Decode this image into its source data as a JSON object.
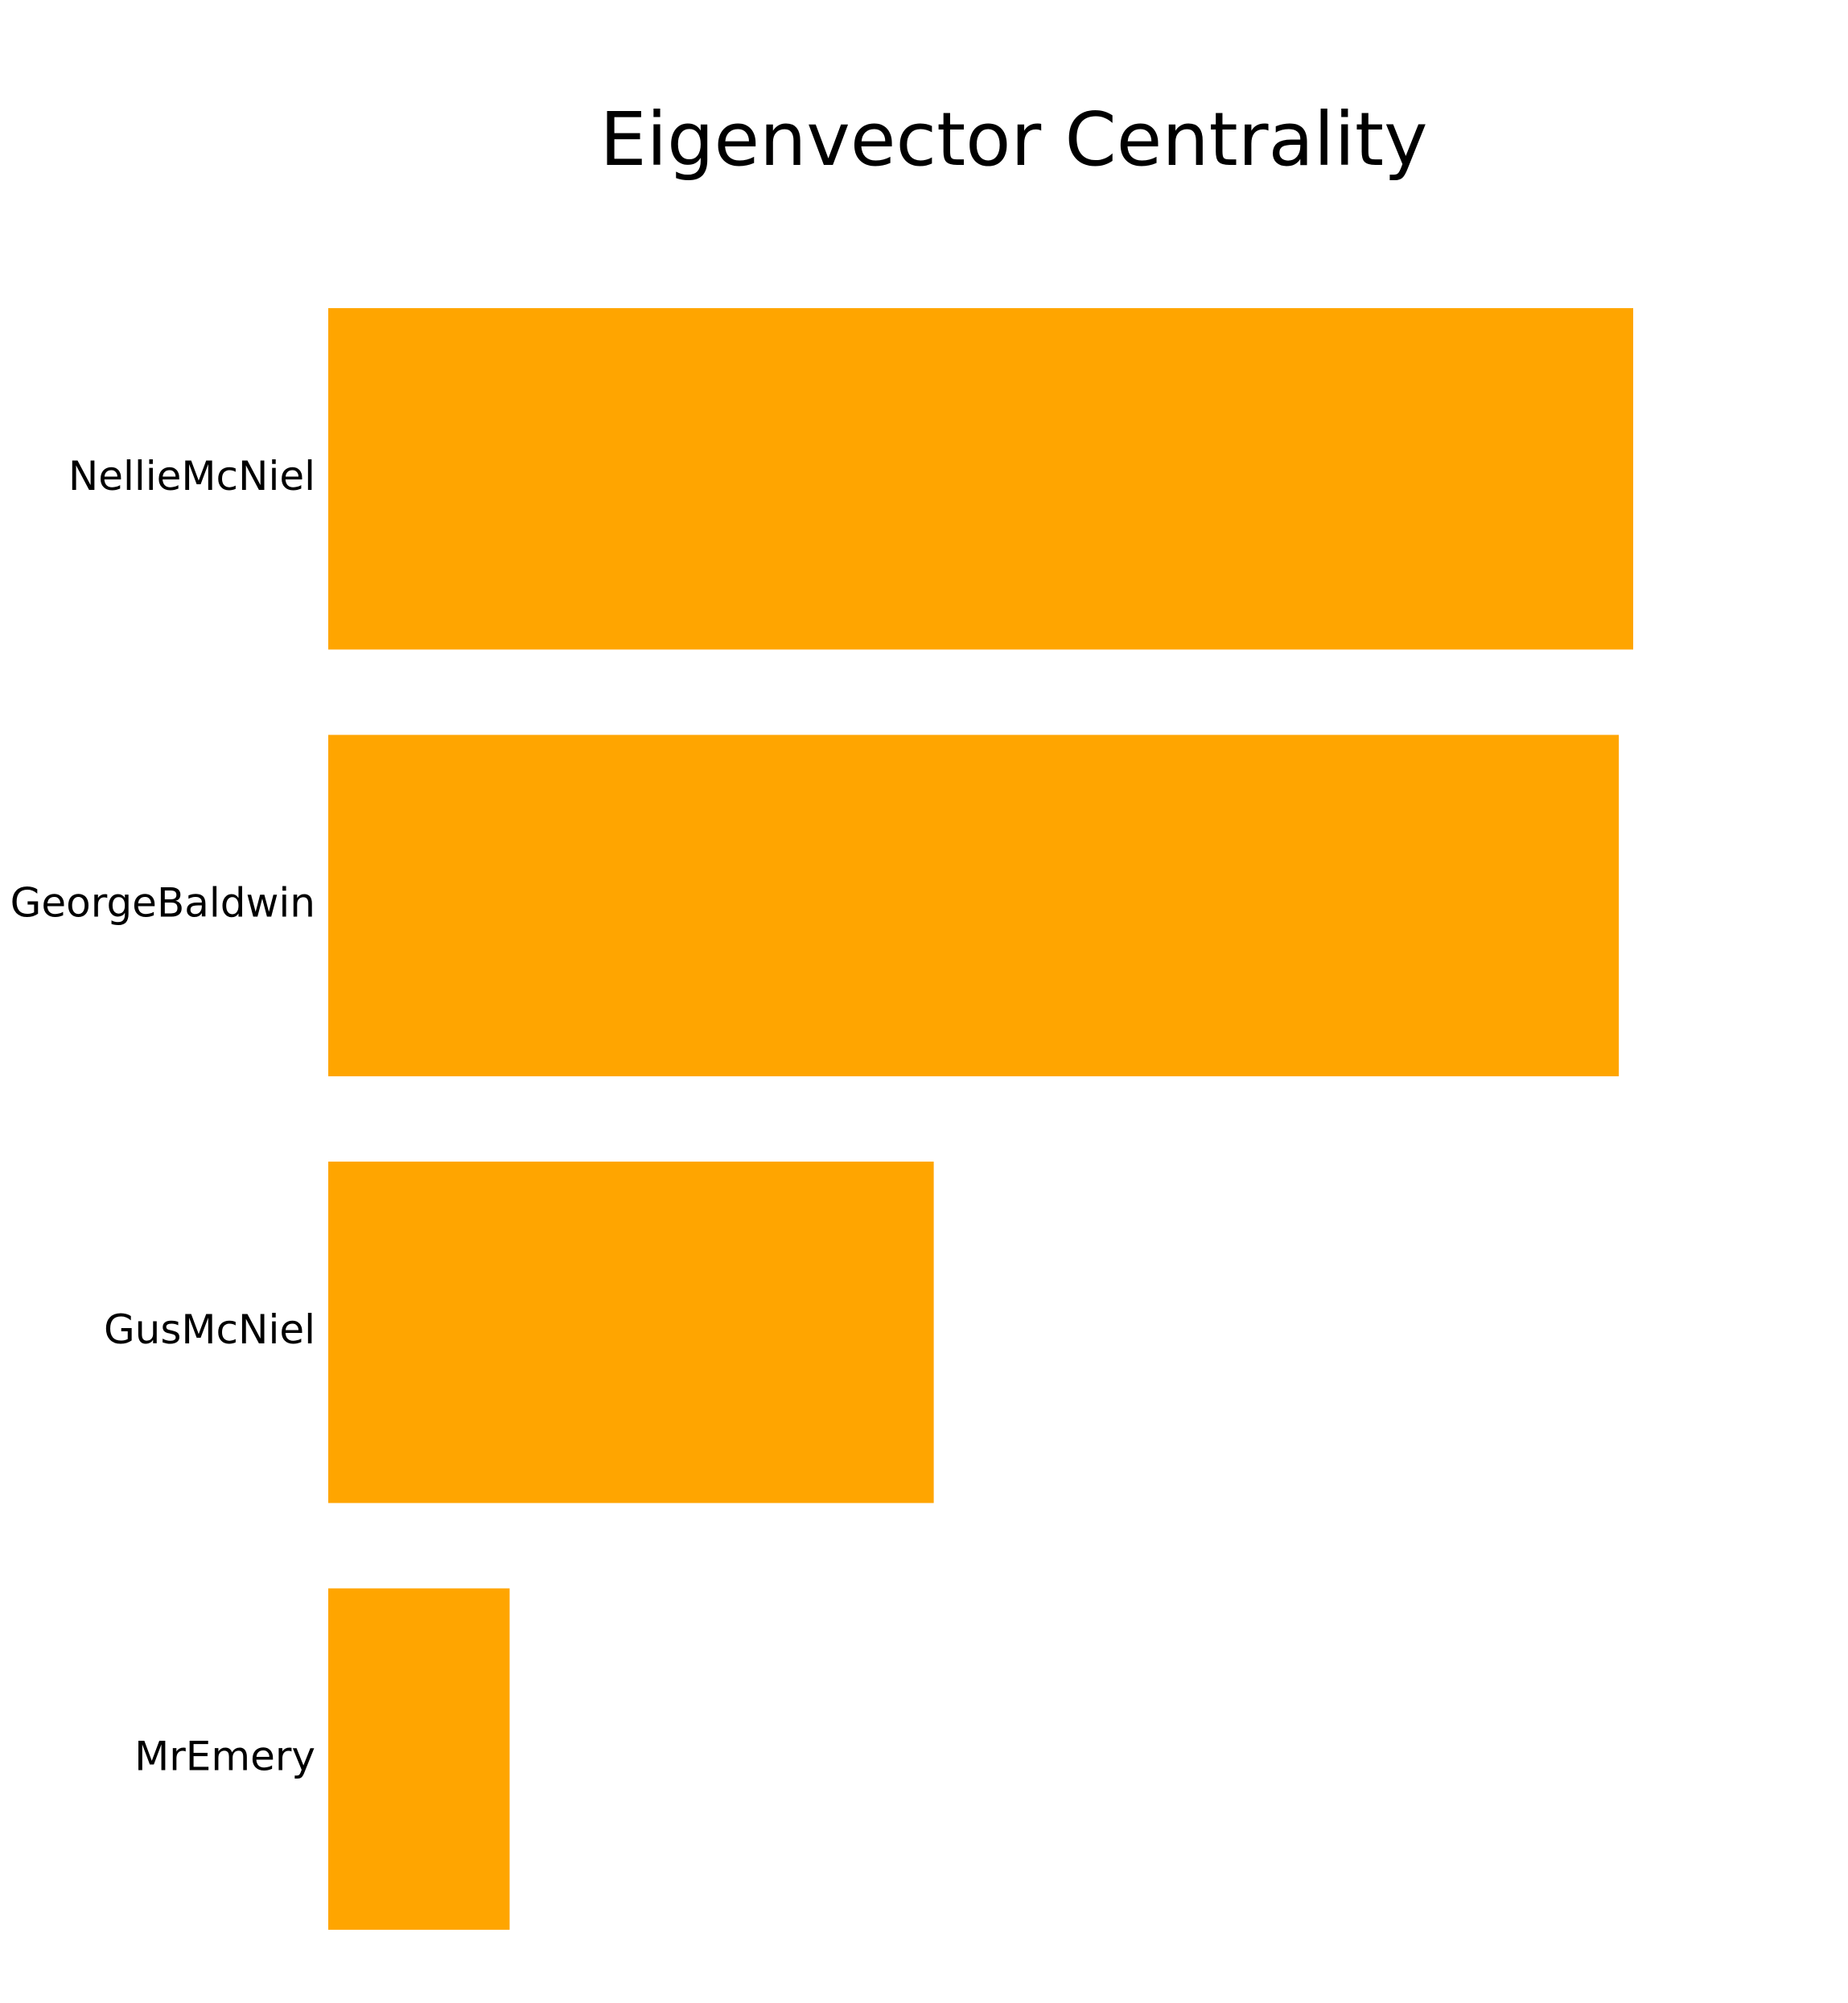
{
  "chart_data": {
    "type": "bar",
    "orientation": "horizontal",
    "title": "Eigenvector Centrality",
    "xlabel": "",
    "ylabel": "",
    "categories": [
      "NellieMcNiel",
      "GeorgeBaldwin",
      "GusMcNiel",
      "MrEmery"
    ],
    "values": [
      1.0,
      0.989,
      0.464,
      0.139
    ],
    "xlim": [
      0,
      1.0
    ],
    "grid": false,
    "axes_visible": false,
    "legend": "none",
    "bar_color": "#FFA500"
  }
}
